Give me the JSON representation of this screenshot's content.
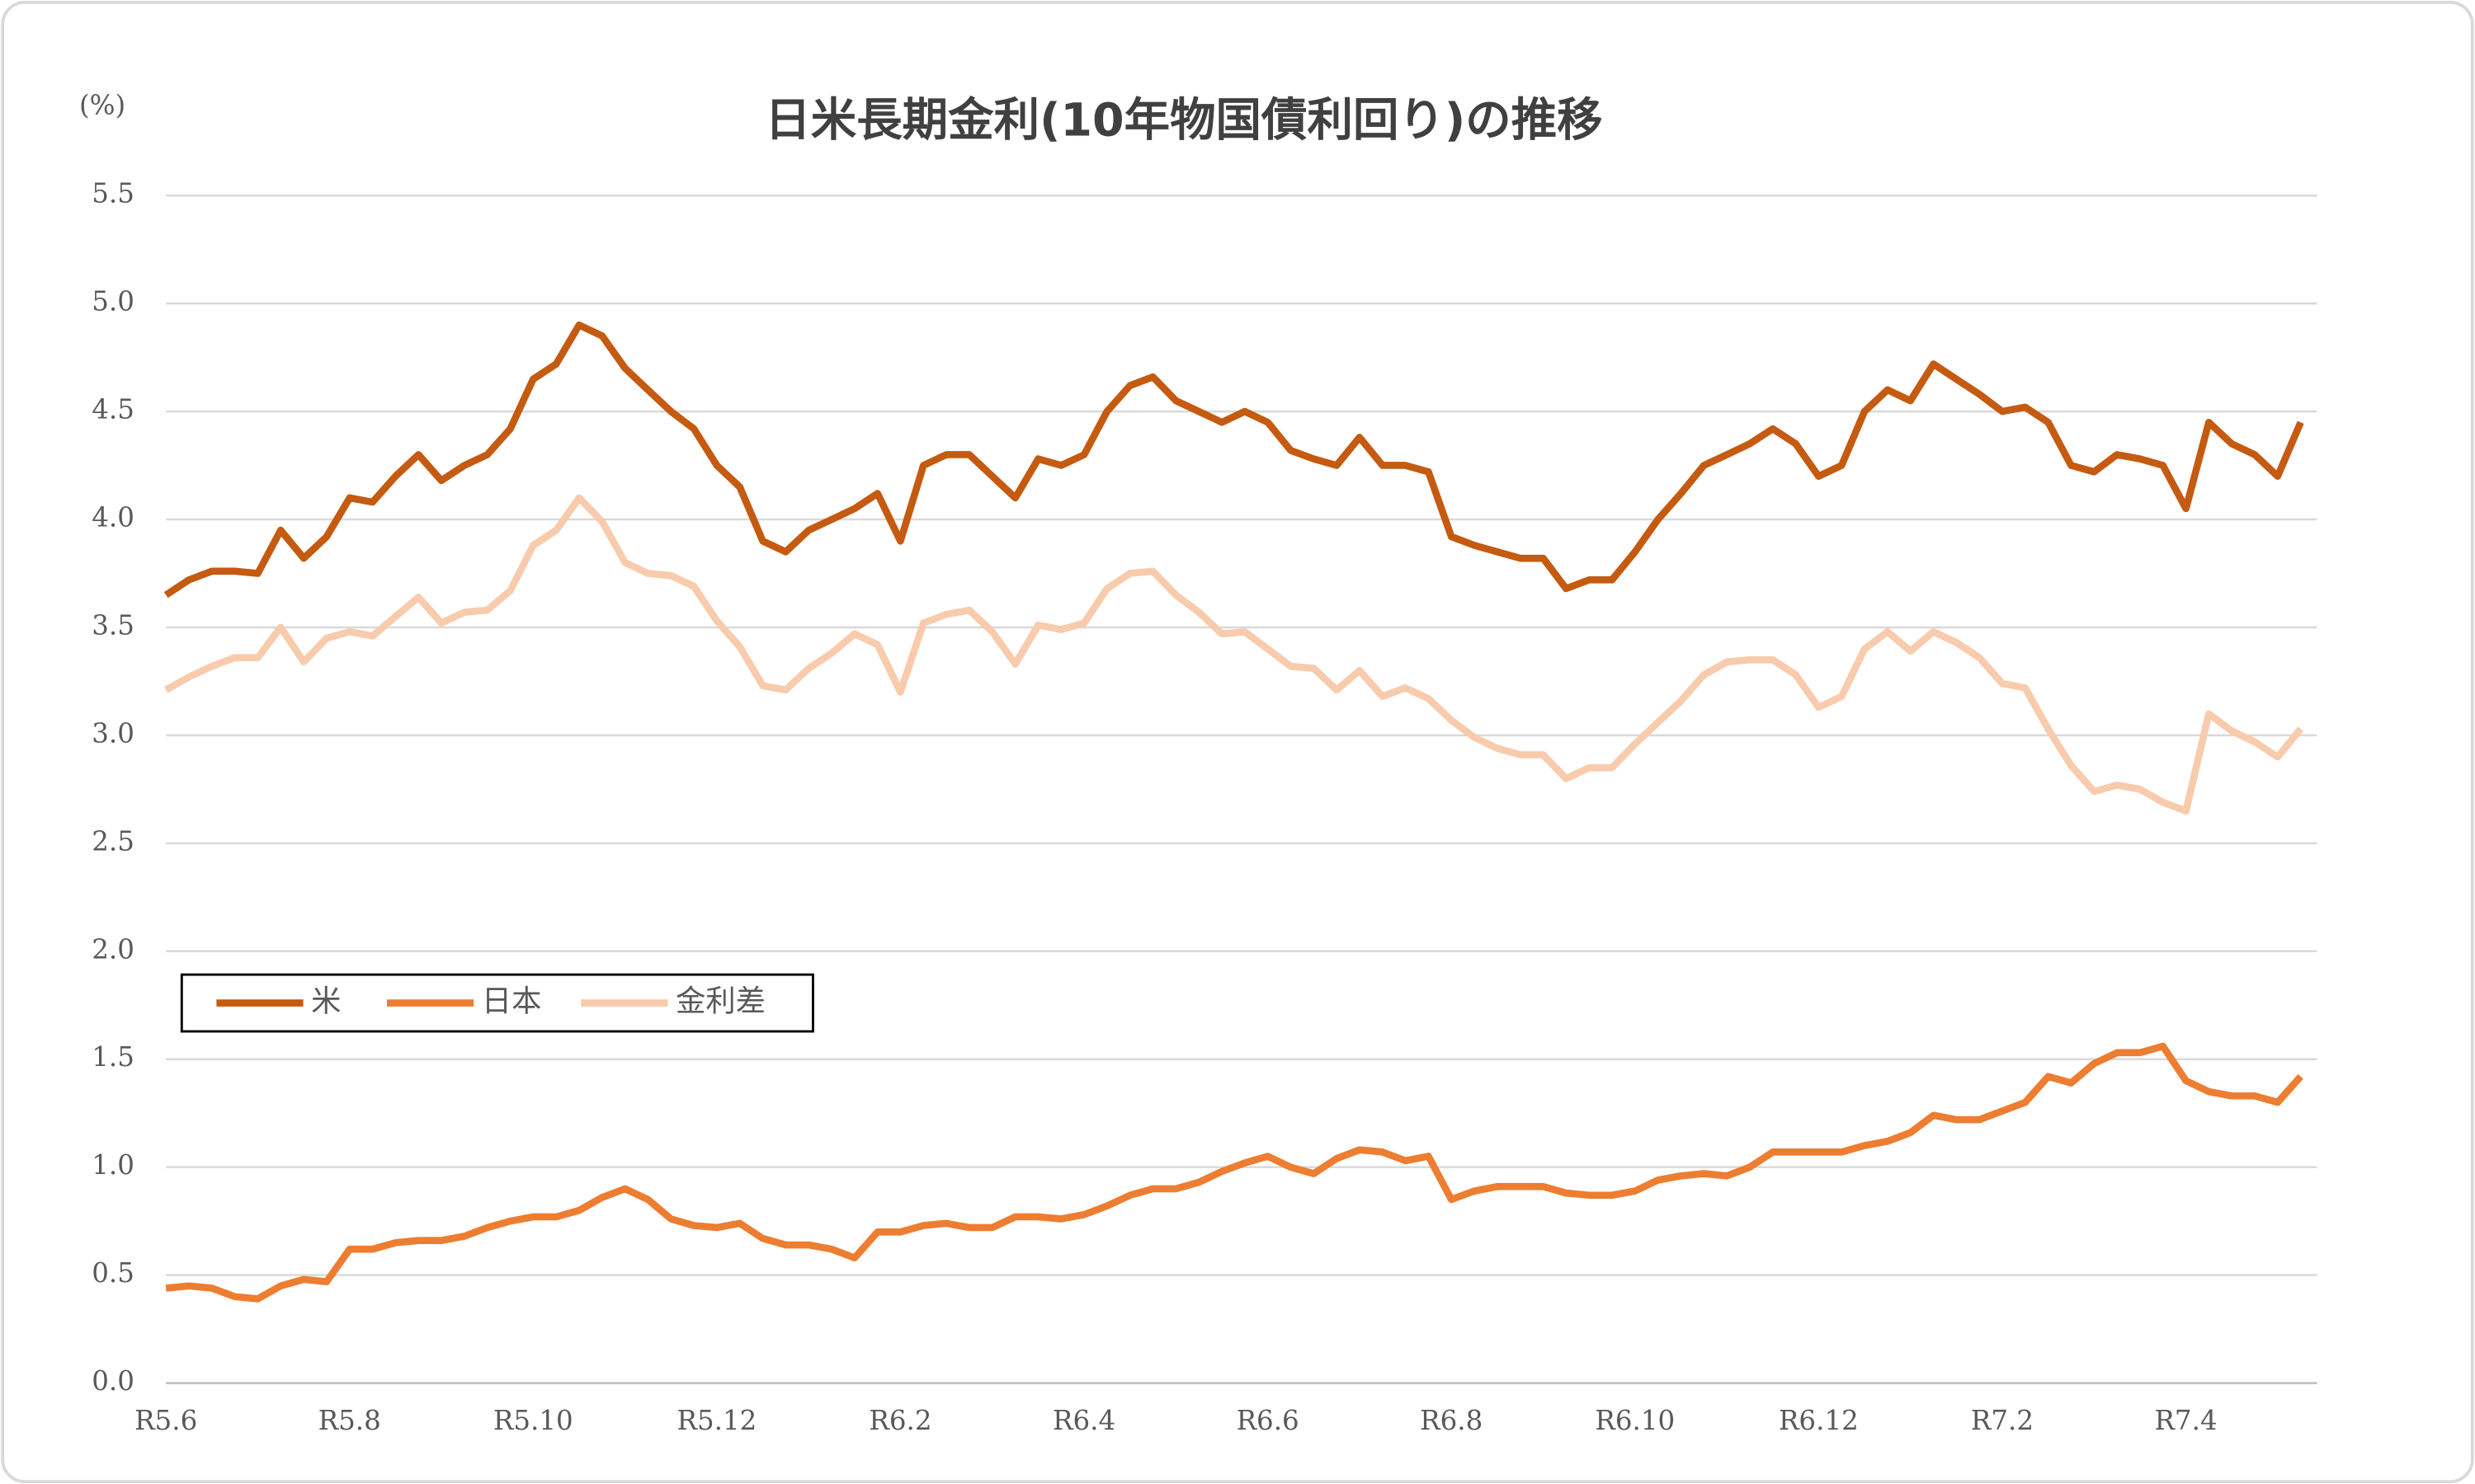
{
  "chart_data": {
    "type": "line",
    "title": "日米長期金利(10年物国債利回り)の推移",
    "y_unit": "(%)",
    "categories": [
      "R5.6",
      null,
      null,
      null,
      null,
      null,
      null,
      null,
      "R5.8",
      null,
      null,
      null,
      null,
      null,
      null,
      null,
      "R5.10",
      null,
      null,
      null,
      null,
      null,
      null,
      null,
      "R5.12",
      null,
      null,
      null,
      null,
      null,
      null,
      null,
      "R6.2",
      null,
      null,
      null,
      null,
      null,
      null,
      null,
      "R6.4",
      null,
      null,
      null,
      null,
      null,
      null,
      null,
      "R6.6",
      null,
      null,
      null,
      null,
      null,
      null,
      null,
      "R6.8",
      null,
      null,
      null,
      null,
      null,
      null,
      null,
      "R6.10",
      null,
      null,
      null,
      null,
      null,
      null,
      null,
      "R6.12",
      null,
      null,
      null,
      null,
      null,
      null,
      null,
      "R7.2",
      null,
      null,
      null,
      null,
      null,
      null,
      null,
      "R7.4",
      null,
      null,
      null,
      null,
      null
    ],
    "series": [
      {
        "name": "米",
        "color": "#c55a11",
        "values": [
          3.65,
          3.72,
          3.76,
          3.76,
          3.75,
          3.95,
          3.82,
          3.92,
          4.1,
          4.08,
          4.2,
          4.3,
          4.18,
          4.25,
          4.3,
          4.42,
          4.65,
          4.72,
          4.9,
          4.85,
          4.7,
          4.6,
          4.5,
          4.42,
          4.25,
          4.15,
          3.9,
          3.85,
          3.95,
          4.0,
          4.05,
          4.12,
          3.9,
          4.25,
          4.3,
          4.3,
          4.2,
          4.1,
          4.28,
          4.25,
          4.3,
          4.5,
          4.62,
          4.66,
          4.55,
          4.5,
          4.45,
          4.5,
          4.45,
          4.32,
          4.28,
          4.25,
          4.38,
          4.25,
          4.25,
          4.22,
          3.92,
          3.88,
          3.85,
          3.82,
          3.82,
          3.68,
          3.72,
          3.72,
          3.85,
          4.0,
          4.12,
          4.25,
          4.3,
          4.35,
          4.42,
          4.35,
          4.2,
          4.25,
          4.5,
          4.6,
          4.55,
          4.72,
          4.65,
          4.58,
          4.5,
          4.52,
          4.45,
          4.25,
          4.22,
          4.3,
          4.28,
          4.25,
          4.05,
          4.45,
          4.35,
          4.3,
          4.2,
          4.45
        ]
      },
      {
        "name": "日本",
        "color": "#ed7d31",
        "values": [
          0.44,
          0.45,
          0.44,
          0.4,
          0.39,
          0.45,
          0.48,
          0.47,
          0.62,
          0.62,
          0.65,
          0.66,
          0.66,
          0.68,
          0.72,
          0.75,
          0.77,
          0.77,
          0.8,
          0.86,
          0.9,
          0.85,
          0.76,
          0.73,
          0.72,
          0.74,
          0.67,
          0.64,
          0.64,
          0.62,
          0.58,
          0.7,
          0.7,
          0.73,
          0.74,
          0.72,
          0.72,
          0.77,
          0.77,
          0.76,
          0.78,
          0.82,
          0.87,
          0.9,
          0.9,
          0.93,
          0.98,
          1.02,
          1.05,
          1.0,
          0.97,
          1.04,
          1.08,
          1.07,
          1.03,
          1.05,
          0.85,
          0.89,
          0.91,
          0.91,
          0.91,
          0.88,
          0.87,
          0.87,
          0.89,
          0.94,
          0.96,
          0.97,
          0.96,
          1.0,
          1.07,
          1.07,
          1.07,
          1.07,
          1.1,
          1.12,
          1.16,
          1.24,
          1.22,
          1.22,
          1.26,
          1.3,
          1.42,
          1.39,
          1.48,
          1.53,
          1.53,
          1.56,
          1.4,
          1.35,
          1.33,
          1.33,
          1.3,
          1.42
        ]
      },
      {
        "name": "金利差",
        "color": "#f8cbad",
        "values": [
          3.21,
          3.27,
          3.32,
          3.36,
          3.36,
          3.5,
          3.34,
          3.45,
          3.48,
          3.46,
          3.55,
          3.64,
          3.52,
          3.57,
          3.58,
          3.67,
          3.88,
          3.95,
          4.1,
          3.99,
          3.8,
          3.75,
          3.74,
          3.69,
          3.53,
          3.41,
          3.23,
          3.21,
          3.31,
          3.38,
          3.47,
          3.42,
          3.2,
          3.52,
          3.56,
          3.58,
          3.48,
          3.33,
          3.51,
          3.49,
          3.52,
          3.68,
          3.75,
          3.76,
          3.65,
          3.57,
          3.47,
          3.48,
          3.4,
          3.32,
          3.31,
          3.21,
          3.3,
          3.18,
          3.22,
          3.17,
          3.07,
          2.99,
          2.94,
          2.91,
          2.91,
          2.8,
          2.85,
          2.85,
          2.96,
          3.06,
          3.16,
          3.28,
          3.34,
          3.35,
          3.35,
          3.28,
          3.13,
          3.18,
          3.4,
          3.48,
          3.39,
          3.48,
          3.43,
          3.36,
          3.24,
          3.22,
          3.03,
          2.86,
          2.74,
          2.77,
          2.75,
          2.69,
          2.65,
          3.1,
          3.02,
          2.97,
          2.9,
          3.03
        ]
      }
    ],
    "ylim": [
      0,
      5.5
    ],
    "yticks": [
      {
        "value": 0,
        "label": "0.0"
      },
      0.5,
      {
        "value": 1,
        "label": "1.0"
      },
      1.5,
      {
        "value": 2,
        "label": "2.0"
      },
      2.5,
      {
        "value": 3,
        "label": "3.0"
      },
      3.5,
      {
        "value": 4,
        "label": "4.0"
      },
      4.5,
      {
        "value": 5,
        "label": "5.0"
      },
      5.5
    ],
    "grid": true,
    "legend": "lower-left"
  }
}
